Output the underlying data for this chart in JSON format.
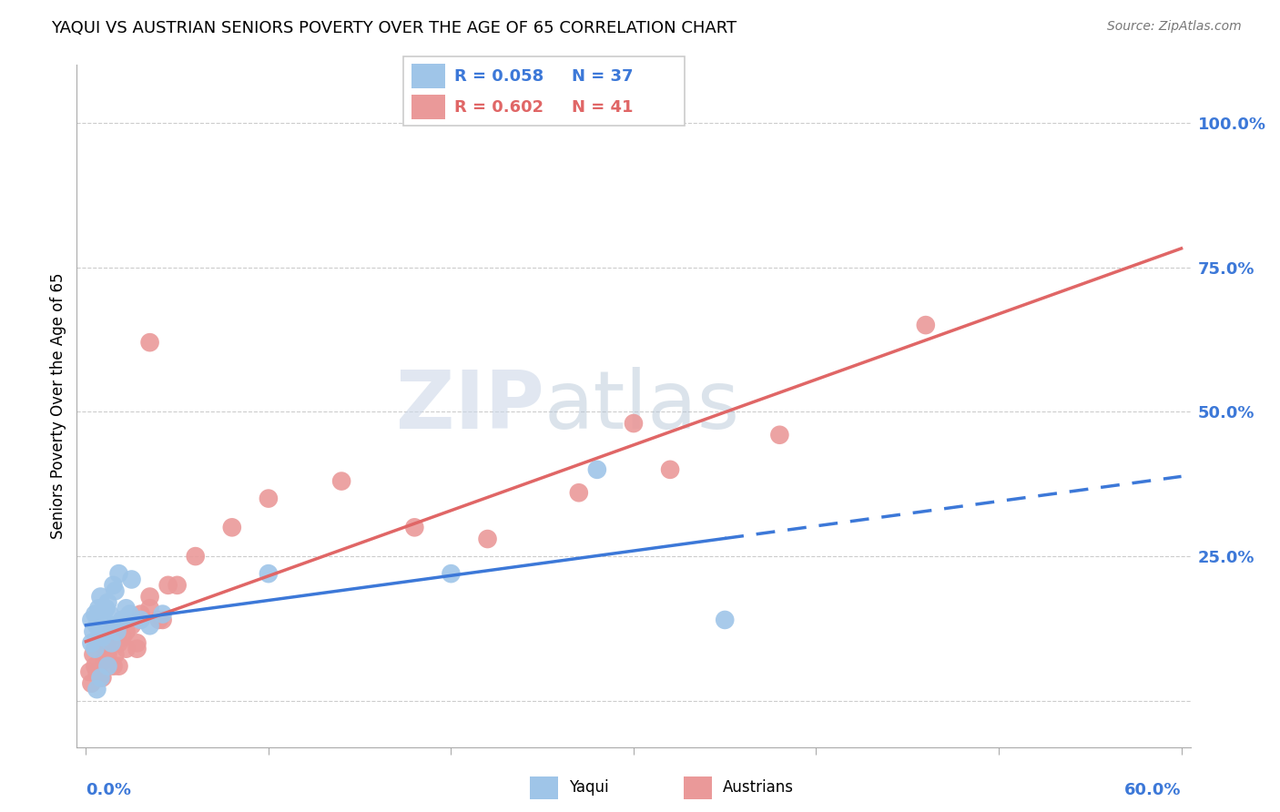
{
  "title": "YAQUI VS AUSTRIAN SENIORS POVERTY OVER THE AGE OF 65 CORRELATION CHART",
  "source": "Source: ZipAtlas.com",
  "ylabel": "Seniors Poverty Over the Age of 65",
  "yaqui_color": "#9fc5e8",
  "austrians_color": "#ea9999",
  "trend_yaqui_color": "#3c78d8",
  "trend_austrians_color": "#e06666",
  "legend_R_yaqui": "R = 0.058",
  "legend_N_yaqui": "N = 37",
  "legend_R_austrians": "R = 0.602",
  "legend_N_austrians": "N = 41",
  "watermark_zip": "ZIP",
  "watermark_atlas": "atlas",
  "xlim": [
    0.0,
    0.6
  ],
  "ylim": [
    -0.08,
    1.1
  ],
  "yticks": [
    0.0,
    0.25,
    0.5,
    0.75,
    1.0
  ],
  "ytick_labels": [
    "",
    "25.0%",
    "50.0%",
    "75.0%",
    "100.0%"
  ],
  "xtick_positions": [
    0.0,
    0.1,
    0.2,
    0.3,
    0.4,
    0.5,
    0.6
  ],
  "yaqui_x": [
    0.003,
    0.004,
    0.005,
    0.006,
    0.007,
    0.008,
    0.009,
    0.01,
    0.011,
    0.012,
    0.013,
    0.014,
    0.015,
    0.016,
    0.018,
    0.02,
    0.022,
    0.025,
    0.003,
    0.005,
    0.007,
    0.009,
    0.011,
    0.014,
    0.017,
    0.02,
    0.024,
    0.03,
    0.035,
    0.042,
    0.1,
    0.2,
    0.28,
    0.35,
    0.012,
    0.008,
    0.006
  ],
  "yaqui_y": [
    0.14,
    0.12,
    0.15,
    0.13,
    0.16,
    0.18,
    0.11,
    0.14,
    0.16,
    0.17,
    0.15,
    0.13,
    0.2,
    0.19,
    0.22,
    0.14,
    0.16,
    0.21,
    0.1,
    0.09,
    0.11,
    0.12,
    0.13,
    0.1,
    0.12,
    0.14,
    0.15,
    0.14,
    0.13,
    0.15,
    0.22,
    0.22,
    0.4,
    0.14,
    0.06,
    0.04,
    0.02
  ],
  "austrians_x": [
    0.002,
    0.004,
    0.005,
    0.007,
    0.008,
    0.01,
    0.012,
    0.014,
    0.016,
    0.018,
    0.02,
    0.022,
    0.025,
    0.028,
    0.03,
    0.035,
    0.04,
    0.045,
    0.003,
    0.006,
    0.009,
    0.012,
    0.015,
    0.018,
    0.022,
    0.028,
    0.035,
    0.042,
    0.05,
    0.06,
    0.08,
    0.1,
    0.14,
    0.18,
    0.22,
    0.27,
    0.32,
    0.38,
    0.46,
    0.3,
    0.035
  ],
  "austrians_y": [
    0.05,
    0.08,
    0.06,
    0.1,
    0.04,
    0.07,
    0.09,
    0.12,
    0.08,
    0.06,
    0.11,
    0.09,
    0.13,
    0.1,
    0.15,
    0.18,
    0.14,
    0.2,
    0.03,
    0.05,
    0.04,
    0.08,
    0.06,
    0.1,
    0.12,
    0.09,
    0.16,
    0.14,
    0.2,
    0.25,
    0.3,
    0.35,
    0.38,
    0.3,
    0.28,
    0.36,
    0.4,
    0.46,
    0.65,
    0.48,
    0.62
  ],
  "trend_yaqui_start_x": 0.0,
  "trend_yaqui_solid_end_x": 0.35,
  "trend_yaqui_end_x": 0.6,
  "trend_austrians_start_x": 0.0,
  "trend_austrians_end_x": 0.6
}
